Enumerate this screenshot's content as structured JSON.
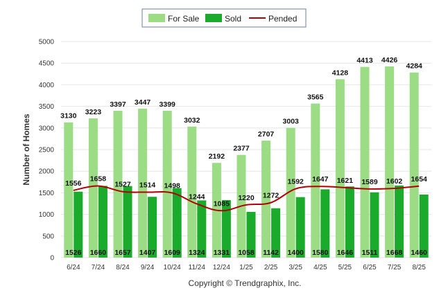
{
  "chart_data": {
    "type": "bar",
    "categories": [
      "6/24",
      "7/24",
      "8/24",
      "9/24",
      "10/24",
      "11/24",
      "12/24",
      "1/25",
      "2/25",
      "3/25",
      "4/25",
      "5/25",
      "6/25",
      "7/25",
      "8/25"
    ],
    "series": [
      {
        "name": "For Sale",
        "type": "bar",
        "color": "#9bdc85",
        "values": [
          3130,
          3223,
          3397,
          3447,
          3399,
          3032,
          2192,
          2377,
          2707,
          3003,
          3565,
          4128,
          4413,
          4426,
          4284
        ]
      },
      {
        "name": "Sold",
        "type": "bar",
        "color": "#1aab2c",
        "values": [
          1526,
          1660,
          1657,
          1407,
          1609,
          1324,
          1331,
          1058,
          1142,
          1400,
          1580,
          1646,
          1511,
          1668,
          1460
        ]
      },
      {
        "name": "Pended",
        "type": "line",
        "color": "#b30000",
        "values": [
          1556,
          1658,
          1527,
          1514,
          1498,
          1244,
          1085,
          1220,
          1272,
          1592,
          1647,
          1621,
          1589,
          1602,
          1654
        ]
      }
    ],
    "title": "",
    "xlabel": "",
    "ylabel": "Number of Homes",
    "ylim": [
      0,
      5000
    ],
    "yticks": [
      "0",
      "500",
      "1000",
      "1500",
      "2000",
      "2500",
      "3000",
      "3500",
      "4000",
      "4500",
      "5000"
    ],
    "grid": true,
    "legend": "top-center"
  },
  "legend": {
    "for_sale": "For Sale",
    "sold": "Sold",
    "pended": "Pended"
  },
  "footer": {
    "copyright": "Copyright © Trendgraphix, Inc."
  }
}
